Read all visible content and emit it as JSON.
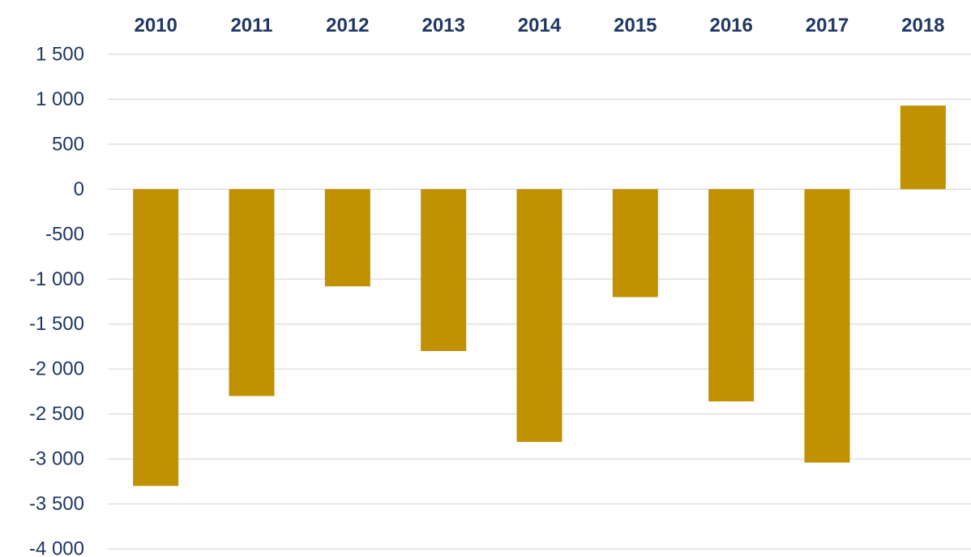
{
  "chart_data": {
    "type": "bar",
    "title": "",
    "xlabel": "",
    "ylabel": "",
    "categories": [
      "2010",
      "2011",
      "2012",
      "2013",
      "2014",
      "2015",
      "2016",
      "2017",
      "2018"
    ],
    "values": [
      -3300,
      -2300,
      -1080,
      -1800,
      -2810,
      -1200,
      -2360,
      -3040,
      930
    ],
    "ylim": [
      -4000,
      1500
    ],
    "yticks": [
      1500,
      1000,
      500,
      0,
      -500,
      -1000,
      -1500,
      -2000,
      -2500,
      -3000,
      -3500,
      -4000
    ],
    "ytick_labels": [
      "1 500",
      "1 000",
      "500",
      "0",
      "-500",
      "-1 000",
      "-1 500",
      "-2 000",
      "-2 500",
      "-3 000",
      "-3 500",
      "-4 000"
    ],
    "x_axis_position": "top",
    "grid": true,
    "legend": "none",
    "bar_color": "#c09100",
    "text_color": "#1f3864",
    "grid_color": "#d9d9d9"
  }
}
